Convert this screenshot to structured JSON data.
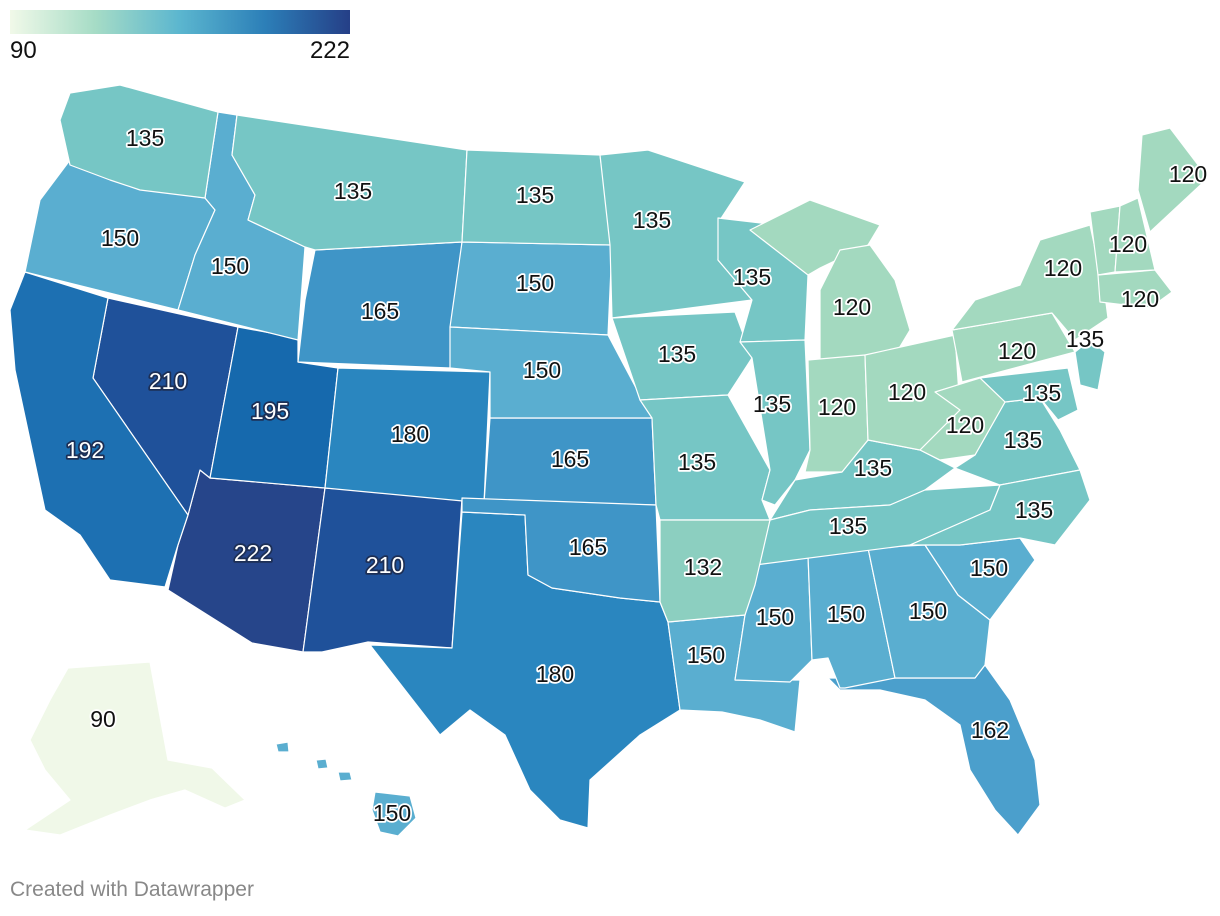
{
  "legend": {
    "min": "90",
    "max": "222"
  },
  "credit": "Created with Datawrapper",
  "colors": {
    "c90": "#f0f8e8",
    "c120": "#a3d9bf",
    "c132": "#8ccfc0",
    "c135": "#76c6c5",
    "c150": "#5aaed0",
    "c162": "#4b9fcc",
    "c165": "#3f95c7",
    "c180": "#2a86bf",
    "c192": "#1d70b2",
    "c195": "#1669ad",
    "c210": "#1f519a",
    "c222": "#26458a"
  },
  "chart_data": {
    "type": "choropleth",
    "colorscale": {
      "min": 90,
      "max": 222
    },
    "states": [
      {
        "name": "Alaska",
        "value": 90
      },
      {
        "name": "Arizona",
        "value": 222
      },
      {
        "name": "Nevada",
        "value": 210
      },
      {
        "name": "New Mexico",
        "value": 210
      },
      {
        "name": "Utah",
        "value": 195
      },
      {
        "name": "California",
        "value": 192
      },
      {
        "name": "Colorado",
        "value": 180
      },
      {
        "name": "Texas",
        "value": 180
      },
      {
        "name": "Wyoming",
        "value": 165
      },
      {
        "name": "Kansas",
        "value": 165
      },
      {
        "name": "Oklahoma",
        "value": 165
      },
      {
        "name": "Florida",
        "value": 162
      },
      {
        "name": "Oregon",
        "value": 150
      },
      {
        "name": "Idaho",
        "value": 150
      },
      {
        "name": "South Dakota",
        "value": 150
      },
      {
        "name": "Nebraska",
        "value": 150
      },
      {
        "name": "Louisiana",
        "value": 150
      },
      {
        "name": "Mississippi",
        "value": 150
      },
      {
        "name": "Alabama",
        "value": 150
      },
      {
        "name": "Georgia",
        "value": 150
      },
      {
        "name": "South Carolina",
        "value": 150
      },
      {
        "name": "Hawaii",
        "value": 150
      },
      {
        "name": "Washington",
        "value": 135
      },
      {
        "name": "Montana",
        "value": 135
      },
      {
        "name": "North Dakota",
        "value": 135
      },
      {
        "name": "Minnesota",
        "value": 135
      },
      {
        "name": "Iowa",
        "value": 135
      },
      {
        "name": "Missouri",
        "value": 135
      },
      {
        "name": "Wisconsin",
        "value": 135
      },
      {
        "name": "Illinois",
        "value": 135
      },
      {
        "name": "Kentucky",
        "value": 135
      },
      {
        "name": "Tennessee",
        "value": 135
      },
      {
        "name": "Virginia",
        "value": 135
      },
      {
        "name": "North Carolina",
        "value": 135
      },
      {
        "name": "Maryland",
        "value": 135
      },
      {
        "name": "New Jersey",
        "value": 135
      },
      {
        "name": "Arkansas",
        "value": 132
      },
      {
        "name": "Michigan",
        "value": 120
      },
      {
        "name": "Indiana",
        "value": 120
      },
      {
        "name": "Ohio",
        "value": 120
      },
      {
        "name": "West Virginia",
        "value": 120
      },
      {
        "name": "Pennsylvania",
        "value": 120
      },
      {
        "name": "New York",
        "value": 120
      },
      {
        "name": "Vermont",
        "value": 120
      },
      {
        "name": "New Hampshire",
        "value": 120
      },
      {
        "name": "Maine",
        "value": 120
      },
      {
        "name": "Massachusetts",
        "value": 120
      }
    ]
  }
}
